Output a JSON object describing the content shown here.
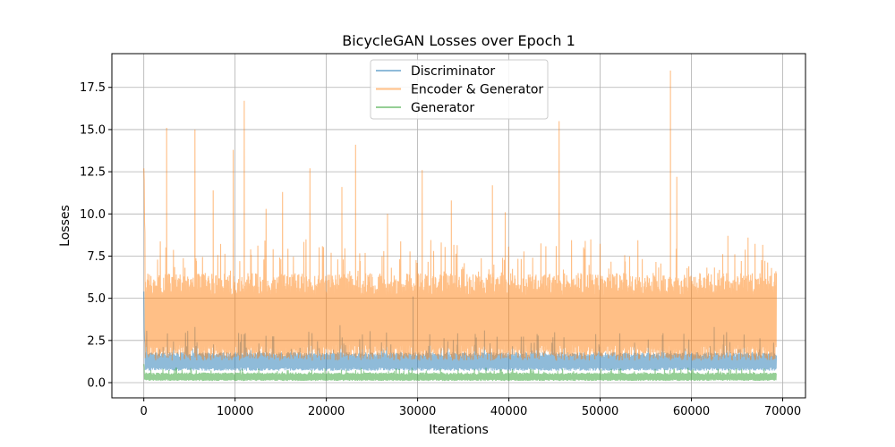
{
  "chart_data": {
    "type": "line",
    "title": "BicycleGAN Losses over Epoch 1",
    "xlabel": "Iterations",
    "ylabel": "Losses",
    "xlim": [
      -3500,
      72500
    ],
    "ylim": [
      -0.9,
      19.5
    ],
    "x_ticks": [
      0,
      10000,
      20000,
      30000,
      40000,
      50000,
      60000,
      70000
    ],
    "y_ticks": [
      0.0,
      2.5,
      5.0,
      7.5,
      10.0,
      12.5,
      15.0,
      17.5
    ],
    "x_tick_labels": [
      "0",
      "10000",
      "20000",
      "30000",
      "40000",
      "50000",
      "60000",
      "70000"
    ],
    "y_tick_labels": [
      "0.0",
      "2.5",
      "5.0",
      "7.5",
      "10.0",
      "12.5",
      "15.0",
      "17.5"
    ],
    "grid": true,
    "legend_position": "top-center",
    "x_max": 69300,
    "series": [
      {
        "name": "Discriminator",
        "color": "#1f77b4",
        "alpha": 0.5,
        "base_band": [
          0.7,
          1.8
        ],
        "spike_band": [
          1.5,
          3.1
        ],
        "start_values": [
          5.4,
          3.2,
          2.6,
          2.3
        ],
        "peaks": [
          [
            29500,
            5.1
          ],
          [
            5600,
            3.3
          ],
          [
            21500,
            3.4
          ],
          [
            62500,
            3.3
          ]
        ]
      },
      {
        "name": "Encoder & Generator",
        "color": "#ff7f0e",
        "alpha": 0.5,
        "base_band": [
          1.3,
          6.5
        ],
        "spike_band": [
          6.0,
          8.5
        ],
        "start_values": [
          12.7,
          12.0,
          9.5,
          8.9
        ],
        "peaks": [
          [
            2500,
            15.1
          ],
          [
            5600,
            15.0
          ],
          [
            7600,
            11.4
          ],
          [
            9800,
            13.8
          ],
          [
            11000,
            16.7
          ],
          [
            13400,
            10.3
          ],
          [
            15200,
            11.3
          ],
          [
            18200,
            12.7
          ],
          [
            21700,
            11.6
          ],
          [
            23200,
            14.1
          ],
          [
            26700,
            10.0
          ],
          [
            30500,
            12.6
          ],
          [
            33700,
            10.8
          ],
          [
            38200,
            11.7
          ],
          [
            39600,
            10.1
          ],
          [
            45500,
            15.5
          ],
          [
            57700,
            18.5
          ],
          [
            58400,
            12.2
          ],
          [
            64000,
            8.7
          ],
          [
            66200,
            8.6
          ]
        ]
      },
      {
        "name": "Generator",
        "color": "#2ca02c",
        "alpha": 0.5,
        "base_band": [
          0.1,
          0.6
        ],
        "spike_band": [
          0.5,
          0.9
        ],
        "start_values": [
          1.1,
          0.9
        ],
        "peaks": []
      }
    ]
  }
}
